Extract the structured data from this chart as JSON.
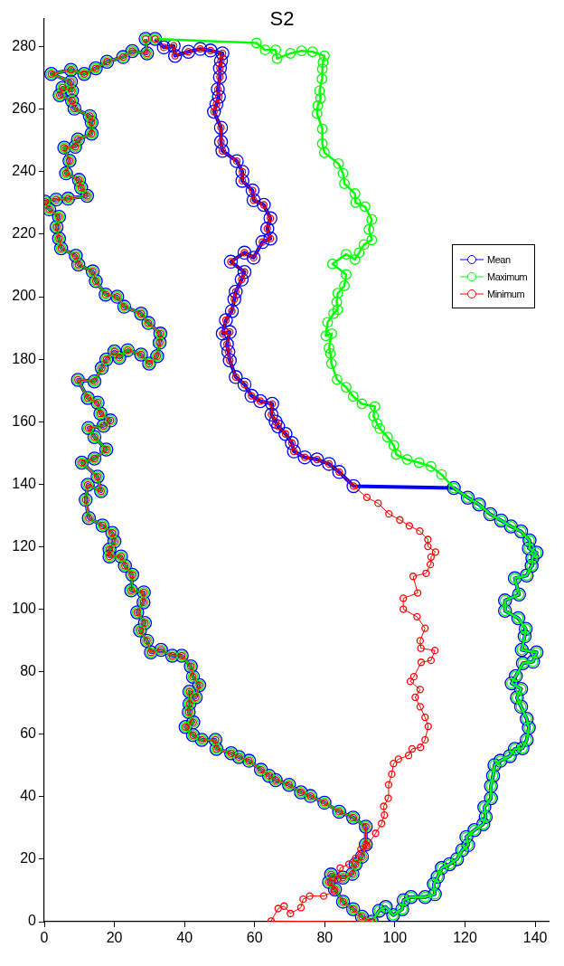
{
  "chart_data": {
    "type": "line",
    "title": "S2",
    "xlim": [
      0,
      144
    ],
    "ylim": [
      0,
      289
    ],
    "xticks": [
      0,
      20,
      40,
      60,
      80,
      100,
      120,
      140
    ],
    "yticks": [
      0,
      20,
      40,
      60,
      80,
      100,
      120,
      140,
      160,
      180,
      200,
      220,
      240,
      260,
      280
    ],
    "legend": "right",
    "marker": "circle",
    "line_style": "solid",
    "series": [
      {
        "name": "Mean",
        "color": "#0000ff",
        "x": [
          28.9,
          29.3,
          25.1,
          22.5,
          17.9,
          14.7,
          11.4,
          7.6,
          2.0,
          7.6,
          7.9,
          5.2,
          4.4,
          7.9,
          8.6,
          13.0,
          13.5,
          13.5,
          9.6,
          8.8,
          5.7,
          7.2,
          6.2,
          9.9,
          10.5,
          12.2,
          6.8,
          3.4,
          0.2,
          1.4,
          4.2,
          3.5,
          4.2,
          4.8,
          9.0,
          9.7,
          13.8,
          14.7,
          17.5,
          20.8,
          22.8,
          27.6,
          29.7,
          33.1,
          32.9,
          32.2,
          29.9,
          27.6,
          23.8,
          21.4,
          20.0,
          17.7,
          16.4,
          14.3,
          9.6,
          12.4,
          15.2,
          16.0,
          18.9,
          16.9,
          12.6,
          14.3,
          17.7,
          14.3,
          10.7,
          15.2,
          16.2,
          12.4,
          11.8,
          12.7,
          16.6,
          19.4,
          20.0,
          18.6,
          18.6,
          21.9,
          23.0,
          25.1,
          24.8,
          28.4,
          28.3,
          26.5,
          28.7,
          27.3,
          29.3,
          30.4,
          33.3,
          36.5,
          39.2,
          41.8,
          42.4,
          44.2,
          43.2,
          41.4,
          41.4,
          41.2,
          42.5,
          40.3,
          42.4,
          44.9,
          48.8,
          49.1,
          53.3,
          55.5,
          58.4,
          61.8,
          64.1,
          66.0,
          69.8,
          73.2,
          75.9,
          79.9,
          84.1,
          88.1,
          91.7,
          91.7,
          90.6,
          88.8,
          87.9,
          85.2,
          81.8,
          81.2,
          82.9,
          85.2,
          88.1,
          90.6,
          93.4,
          95.5,
          97.4,
          99.5,
          102.1,
          102.5,
          104.6,
          108.6,
          111.4,
          111.1,
          112.2,
          113.4,
          115.6,
          117.7,
          119.2,
          120.9,
          120.4,
          122.7,
          125.2,
          125.9,
          125.5,
          127.4,
          127.4,
          128.0,
          128.4,
          130.1,
          132.8,
          134.2,
          136.4,
          137.6,
          138.2,
          137.6,
          136.0,
          134.8,
          136.0,
          133.3,
          134.5,
          136.5,
          139.4,
          140.4,
          136.2,
          137.0,
          137.3,
          135.2,
          131.4,
          131.4,
          135.4,
          134.2,
          137.6,
          139.0,
          139.2,
          140.4,
          138.2,
          138.4,
          136.0,
          133.1,
          130.3,
          127.2,
          124.0,
          120.8,
          116.8,
          88.2,
          84.1,
          81.2,
          77.8,
          74.3,
          71.2,
          70.6,
          68.8,
          66.7,
          66.0,
          64.8,
          65.0,
          61.6,
          59.1,
          57.1,
          54.6,
          52.9,
          52.5,
          52.1,
          52.9,
          50.9,
          51.8,
          53.5,
          54.2,
          54.6,
          56.3,
          57.1,
          53.2,
          57.1,
          59.7,
          62.2,
          64.5,
          63.6,
          64.5,
          62.6,
          59.7,
          59.4,
          56.5,
          56.5,
          54.9,
          50.8,
          50.4,
          50.4,
          48.4,
          49.1,
          49.8,
          49.5,
          50.1,
          50.1,
          50.4,
          50.8,
          47.4,
          44.5,
          41.1,
          37.3,
          36.9,
          34.1,
          31.6
        ],
        "values": [
          282.5,
          277.9,
          278.6,
          276.7,
          275.2,
          273.1,
          271.3,
          272.6,
          271.3,
          268.8,
          265.9,
          266.9,
          264.5,
          262.7,
          260.2,
          257.8,
          255.8,
          252.2,
          250.3,
          248.0,
          247.7,
          243.5,
          239.5,
          237.4,
          234.9,
          232.3,
          231.4,
          231.1,
          230.4,
          228.0,
          225.6,
          222.3,
          218.6,
          215.5,
          213.1,
          210.3,
          208.1,
          205.0,
          200.7,
          200.0,
          196.8,
          194.6,
          191.6,
          188.2,
          185.3,
          181.0,
          178.6,
          181.5,
          182.9,
          180.5,
          182.5,
          179.9,
          177.2,
          172.9,
          173.4,
          167.6,
          166.1,
          162.6,
          160.4,
          158.7,
          158.0,
          155.1,
          151.1,
          148.2,
          146.9,
          142.4,
          137.8,
          139.8,
          135.0,
          129.2,
          126.8,
          124.4,
          121.7,
          119.1,
          116.9,
          116.9,
          113.9,
          111.0,
          106.0,
          105.4,
          102.2,
          99.0,
          95.6,
          93.2,
          89.9,
          86.2,
          87.0,
          85.1,
          85.1,
          81.7,
          78.4,
          75.7,
          71.8,
          73.6,
          69.7,
          67.1,
          63.8,
          62.3,
          59.7,
          58.2,
          58.2,
          55.3,
          53.9,
          52.7,
          51.5,
          48.6,
          46.7,
          45.3,
          43.8,
          41.4,
          40.2,
          38.1,
          35.2,
          33.3,
          30.4,
          24.7,
          20.8,
          18.4,
          15.3,
          14.1,
          15.1,
          12.7,
          10.3,
          6.4,
          4.0,
          1.6,
          0,
          3.5,
          4.7,
          2.1,
          4.0,
          6.9,
          7.9,
          7.9,
          8.8,
          12.0,
          14.3,
          17.2,
          18.4,
          20.0,
          22.9,
          24.5,
          27.1,
          29.3,
          31.2,
          33.5,
          36.6,
          39.5,
          43.4,
          46.7,
          50.1,
          51.5,
          53.0,
          55.3,
          55.5,
          58.2,
          62.1,
          64.9,
          68.8,
          71.7,
          74.5,
          76.3,
          78.6,
          82.7,
          83.2,
          86.2,
          87.0,
          91.3,
          93.7,
          97.1,
          99.5,
          102.8,
          104.7,
          109.9,
          110.8,
          113.9,
          116.4,
          118.1,
          119.5,
          122.0,
          124.9,
          126.5,
          128.4,
          130.4,
          133.5,
          135.7,
          138.8,
          139.4,
          143.9,
          146.5,
          147.9,
          148.6,
          150.5,
          153.2,
          156.1,
          158.5,
          160.0,
          162.3,
          165.7,
          166.6,
          168.3,
          171.9,
          174.3,
          179.6,
          182.4,
          184.8,
          188.7,
          188.2,
          192.5,
          195.4,
          199.2,
          201.6,
          205.5,
          207.9,
          211.2,
          214.1,
          212.5,
          217.5,
          218.6,
          221.8,
          225.1,
          229.4,
          230.9,
          234.0,
          237.1,
          240.0,
          243.4,
          246.7,
          249.6,
          254.1,
          259.2,
          261.6,
          264.0,
          266.4,
          270.3,
          273.1,
          275.5,
          277.9,
          278.8,
          279.3,
          278.4,
          277.1,
          280.3,
          279.8,
          282.5
        ]
      },
      {
        "name": "Maximum",
        "color": "#00ff00",
        "x": [
          28.9,
          29.3,
          25.1,
          22.5,
          17.9,
          14.7,
          11.4,
          7.6,
          2.0,
          7.6,
          7.9,
          5.2,
          4.4,
          7.9,
          8.6,
          13.0,
          13.5,
          13.5,
          9.6,
          8.8,
          5.7,
          7.2,
          6.2,
          9.9,
          10.5,
          12.2,
          6.8,
          3.4,
          0.2,
          1.4,
          4.2,
          3.5,
          4.2,
          4.8,
          9.0,
          9.7,
          13.8,
          14.7,
          17.5,
          20.8,
          22.8,
          27.6,
          29.7,
          33.1,
          32.9,
          32.2,
          29.9,
          27.6,
          23.8,
          21.4,
          20.0,
          17.7,
          16.4,
          14.3,
          9.6,
          12.4,
          15.2,
          16.0,
          18.9,
          16.9,
          12.6,
          14.3,
          17.7,
          14.3,
          10.7,
          15.2,
          16.2,
          12.4,
          11.8,
          12.7,
          16.6,
          19.4,
          20.0,
          18.6,
          18.6,
          21.9,
          23.0,
          25.1,
          24.8,
          28.4,
          28.3,
          26.5,
          28.7,
          27.3,
          29.3,
          30.4,
          33.3,
          36.5,
          39.2,
          41.8,
          42.4,
          44.2,
          43.2,
          41.4,
          41.4,
          41.2,
          42.5,
          40.3,
          42.4,
          44.9,
          48.8,
          49.1,
          53.3,
          55.5,
          58.4,
          61.8,
          64.1,
          66.0,
          69.8,
          73.2,
          75.9,
          79.9,
          84.1,
          88.1,
          91.7,
          91.7,
          90.6,
          88.8,
          87.9,
          85.2,
          81.8,
          81.2,
          82.9,
          85.2,
          88.1,
          90.6,
          93.4,
          95.5,
          97.4,
          99.5,
          102.1,
          102.5,
          104.6,
          108.6,
          111.4,
          111.1,
          112.2,
          113.4,
          115.6,
          117.7,
          119.2,
          120.9,
          120.4,
          122.7,
          125.2,
          125.9,
          125.5,
          127.4,
          127.4,
          128.0,
          128.4,
          130.1,
          132.8,
          134.2,
          136.4,
          137.6,
          138.2,
          137.6,
          136.0,
          134.8,
          136.0,
          133.3,
          134.5,
          136.5,
          139.4,
          140.4,
          136.2,
          137.0,
          137.3,
          135.2,
          131.4,
          131.4,
          135.4,
          134.2,
          137.6,
          139.0,
          139.2,
          140.4,
          138.2,
          138.4,
          136.0,
          133.1,
          130.3,
          127.2,
          124.0,
          120.8,
          116.8,
          113.3,
          110.3,
          106.9,
          103.5,
          100.4,
          99.7,
          97.9,
          95.7,
          94.9,
          93.9,
          94.3,
          90.6,
          88.1,
          86.1,
          83.5,
          81.9,
          81.6,
          81.2,
          82.0,
          80.3,
          80.8,
          82.5,
          83.7,
          83.4,
          83.7,
          85.6,
          86.1,
          82.2,
          86.1,
          88.6,
          89.8,
          91.2,
          93.4,
          92.6,
          93.4,
          91.5,
          88.8,
          88.6,
          85.6,
          85.2,
          83.9,
          79.9,
          79.3,
          79.3,
          77.8,
          78.0,
          78.8,
          78.5,
          79.2,
          79.3,
          79.5,
          79.9,
          76.5,
          73.4,
          70.2,
          66.4,
          66.0,
          63.0,
          60.5,
          31.6
        ],
        "values": [
          282.5,
          277.9,
          278.6,
          276.7,
          275.2,
          273.1,
          271.3,
          272.6,
          271.3,
          268.8,
          265.9,
          266.9,
          264.5,
          262.7,
          260.2,
          257.8,
          255.8,
          252.2,
          250.3,
          248.0,
          247.7,
          243.5,
          239.5,
          237.4,
          234.9,
          232.3,
          231.4,
          231.1,
          230.4,
          228.0,
          225.6,
          222.3,
          218.6,
          215.5,
          213.1,
          210.3,
          208.1,
          205.0,
          200.7,
          200.0,
          196.8,
          194.6,
          191.6,
          188.2,
          185.3,
          181.0,
          178.6,
          181.5,
          182.9,
          180.5,
          182.5,
          179.9,
          177.2,
          172.9,
          173.4,
          167.6,
          166.1,
          162.6,
          160.4,
          158.7,
          158.0,
          155.1,
          151.1,
          148.2,
          146.9,
          142.4,
          137.8,
          139.8,
          135.0,
          129.2,
          126.8,
          124.4,
          121.7,
          119.1,
          116.9,
          116.9,
          113.9,
          111.0,
          106.0,
          105.4,
          102.2,
          99.0,
          95.6,
          93.2,
          89.9,
          86.2,
          87.0,
          85.1,
          85.1,
          81.7,
          78.4,
          75.7,
          71.8,
          73.6,
          69.7,
          67.1,
          63.8,
          62.3,
          59.7,
          58.2,
          58.2,
          55.3,
          53.9,
          52.7,
          51.5,
          48.6,
          46.7,
          45.3,
          43.8,
          41.4,
          40.2,
          38.1,
          35.2,
          33.3,
          30.4,
          24.7,
          20.8,
          18.4,
          15.3,
          14.1,
          15.1,
          12.7,
          10.3,
          6.4,
          4.0,
          1.6,
          0,
          3.5,
          4.7,
          2.1,
          4.0,
          6.9,
          7.9,
          7.9,
          8.8,
          12.0,
          14.3,
          17.2,
          18.4,
          20.0,
          22.9,
          24.5,
          27.1,
          29.3,
          31.2,
          33.5,
          36.6,
          39.5,
          43.4,
          46.7,
          50.1,
          51.5,
          53.0,
          55.3,
          55.5,
          58.2,
          62.1,
          64.9,
          68.8,
          71.7,
          74.5,
          76.3,
          78.6,
          82.7,
          83.2,
          86.2,
          87.0,
          91.3,
          93.7,
          97.1,
          99.5,
          102.8,
          104.7,
          109.9,
          110.8,
          113.9,
          116.4,
          118.1,
          119.5,
          122.0,
          124.9,
          126.5,
          128.4,
          130.4,
          133.5,
          135.7,
          138.8,
          143.1,
          145.7,
          146.9,
          147.9,
          149.5,
          152.4,
          155.1,
          157.8,
          159.4,
          161.8,
          164.9,
          165.7,
          168.1,
          171.0,
          173.5,
          178.6,
          181.8,
          183.6,
          188.2,
          187.5,
          191.8,
          194.6,
          195.9,
          198.3,
          201.1,
          203.5,
          207.1,
          210.5,
          213.6,
          211.9,
          214.1,
          216.7,
          218.2,
          221.5,
          224.7,
          228.8,
          230.1,
          233.0,
          236.2,
          239.5,
          242.6,
          246.1,
          249.0,
          253.7,
          258.6,
          261.1,
          263.5,
          265.9,
          269.7,
          272.9,
          275.0,
          277.1,
          278.4,
          278.7,
          277.9,
          276.2,
          279.0,
          279.0,
          281.2,
          282.5
        ]
      },
      {
        "name": "Minimum",
        "color": "#ff0000",
        "x": [
          28.9,
          29.3,
          25.1,
          22.5,
          17.9,
          14.7,
          11.4,
          7.6,
          2.0,
          7.6,
          7.9,
          5.2,
          4.4,
          7.9,
          8.6,
          13.0,
          13.5,
          13.5,
          9.6,
          8.8,
          5.7,
          7.2,
          6.2,
          9.9,
          10.5,
          12.2,
          6.8,
          3.4,
          0.2,
          1.4,
          4.2,
          3.5,
          4.2,
          4.8,
          9.0,
          9.7,
          13.8,
          14.7,
          17.5,
          20.8,
          22.8,
          27.6,
          29.7,
          33.1,
          32.9,
          32.2,
          29.9,
          27.6,
          23.8,
          21.4,
          20.0,
          17.7,
          16.4,
          14.3,
          9.6,
          12.4,
          15.2,
          16.0,
          18.9,
          16.9,
          12.6,
          14.3,
          17.7,
          14.3,
          10.7,
          15.2,
          16.2,
          12.4,
          11.8,
          12.7,
          16.6,
          19.4,
          20.0,
          18.6,
          18.6,
          21.9,
          23.0,
          25.1,
          24.8,
          28.4,
          28.3,
          26.5,
          28.7,
          27.3,
          29.3,
          30.4,
          33.3,
          36.5,
          39.2,
          41.8,
          42.4,
          44.2,
          43.2,
          41.4,
          41.4,
          41.2,
          42.5,
          40.3,
          42.4,
          44.9,
          48.8,
          49.1,
          53.3,
          55.5,
          58.4,
          61.8,
          64.1,
          66.0,
          69.8,
          73.2,
          75.9,
          79.9,
          84.1,
          88.1,
          91.7,
          91.7,
          90.6,
          88.8,
          87.9,
          85.2,
          81.8,
          81.2,
          82.9,
          85.2,
          88.1,
          90.6,
          93.4,
          64.7,
          66.7,
          68.4,
          70.2,
          73.2,
          73.8,
          75.7,
          79.7,
          82.7,
          81.8,
          83.7,
          84.4,
          86.9,
          88.8,
          90.3,
          92.0,
          94.5,
          96.2,
          97.0,
          96.8,
          98.1,
          98.2,
          99.1,
          99.6,
          101.0,
          103.9,
          104.9,
          107.3,
          108.6,
          109.5,
          108.6,
          107.2,
          105.8,
          107.2,
          104.4,
          105.4,
          107.5,
          110.3,
          111.4,
          107.4,
          107.2,
          108.6,
          106.3,
          102.4,
          102.4,
          106.5,
          105.2,
          108.9,
          110.1,
          110.3,
          111.6,
          109.4,
          109.4,
          107.1,
          104.1,
          101.4,
          98.3,
          95.2,
          92.0,
          88.2,
          84.1,
          81.2,
          77.8,
          74.3,
          71.2,
          70.6,
          68.8,
          66.7,
          66.0,
          64.8,
          65.0,
          61.6,
          59.1,
          57.1,
          54.6,
          52.9,
          52.5,
          52.1,
          52.9,
          50.9,
          51.8,
          53.5,
          54.2,
          54.6,
          56.3,
          57.1,
          53.2,
          57.1,
          59.7,
          62.2,
          64.5,
          63.6,
          64.5,
          62.6,
          59.7,
          59.4,
          56.5,
          56.5,
          54.9,
          50.8,
          50.4,
          50.4,
          48.4,
          49.1,
          49.8,
          49.5,
          50.1,
          50.1,
          50.4,
          50.8,
          47.4,
          44.5,
          41.1,
          37.3,
          36.9,
          34.1,
          31.6
        ],
        "values": [
          282.5,
          277.9,
          278.6,
          276.7,
          275.2,
          273.1,
          271.3,
          272.6,
          271.3,
          268.8,
          265.9,
          266.9,
          264.5,
          262.7,
          260.2,
          257.8,
          255.8,
          252.2,
          250.3,
          248.0,
          247.7,
          243.5,
          239.5,
          237.4,
          234.9,
          232.3,
          231.4,
          231.1,
          230.4,
          228.0,
          225.6,
          222.3,
          218.6,
          215.5,
          213.1,
          210.3,
          208.1,
          205.0,
          200.7,
          200.0,
          196.8,
          194.6,
          191.6,
          188.2,
          185.3,
          181.0,
          178.6,
          181.5,
          182.9,
          180.5,
          182.5,
          179.9,
          177.2,
          172.9,
          173.4,
          167.6,
          166.1,
          162.6,
          160.4,
          158.7,
          158.0,
          155.1,
          151.1,
          148.2,
          146.9,
          142.4,
          137.8,
          139.8,
          135.0,
          129.2,
          126.8,
          124.4,
          121.7,
          119.1,
          116.9,
          116.9,
          113.9,
          111.0,
          106.0,
          105.4,
          102.2,
          99.0,
          95.6,
          93.2,
          89.9,
          86.2,
          87.0,
          85.1,
          85.1,
          81.7,
          78.4,
          75.7,
          71.8,
          73.6,
          69.7,
          67.1,
          63.8,
          62.3,
          59.7,
          58.2,
          58.2,
          55.3,
          53.9,
          52.7,
          51.5,
          48.6,
          46.7,
          45.3,
          43.8,
          41.4,
          40.2,
          38.1,
          35.2,
          33.3,
          30.4,
          24.7,
          20.8,
          18.4,
          15.3,
          14.1,
          15.1,
          12.7,
          10.3,
          6.4,
          4.0,
          1.6,
          0,
          0.2,
          4.2,
          5.0,
          2.6,
          4.5,
          7.2,
          8.2,
          8.2,
          9.8,
          12.4,
          13.6,
          17.2,
          18.4,
          20.3,
          23.2,
          24.2,
          28.3,
          31.4,
          34.1,
          36.9,
          39.5,
          43.8,
          47.2,
          50.6,
          52.0,
          53.2,
          55.3,
          55.8,
          58.2,
          62.5,
          65.4,
          68.8,
          71.8,
          74.3,
          76.9,
          78.4,
          83.0,
          83.6,
          86.8,
          87.5,
          89.9,
          93.9,
          97.6,
          100.0,
          103.5,
          105.2,
          110.5,
          111.5,
          114.3,
          116.7,
          118.3,
          120.1,
          122.3,
          125.0,
          126.7,
          128.6,
          130.5,
          133.9,
          135.8,
          139.4,
          143.9,
          146.5,
          147.9,
          148.6,
          150.5,
          153.2,
          156.1,
          158.5,
          160.0,
          162.3,
          165.7,
          166.6,
          168.3,
          171.9,
          174.3,
          179.6,
          182.4,
          184.8,
          188.7,
          188.2,
          192.5,
          195.4,
          199.2,
          201.6,
          205.5,
          207.9,
          211.2,
          214.1,
          212.5,
          217.5,
          218.6,
          221.8,
          225.1,
          229.4,
          230.9,
          234.0,
          237.1,
          240.0,
          243.4,
          246.7,
          249.6,
          254.1,
          259.2,
          261.6,
          264.0,
          266.4,
          270.3,
          273.1,
          275.5,
          277.9,
          278.8,
          279.3,
          278.4,
          277.1,
          280.3,
          279.8,
          282.5
        ]
      }
    ]
  }
}
